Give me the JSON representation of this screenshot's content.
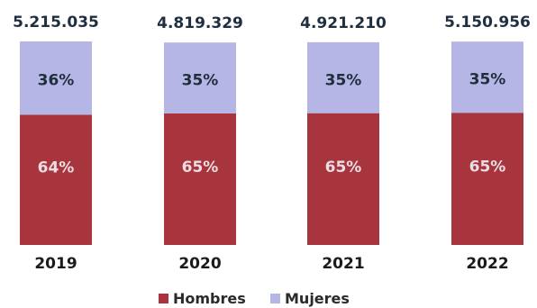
{
  "chart_data": {
    "type": "bar",
    "stacked": true,
    "categories": [
      "2019",
      "2020",
      "2021",
      "2022"
    ],
    "totals": [
      "5.215.035",
      "4.819.329",
      "4.921.210",
      "5.150.956"
    ],
    "series": [
      {
        "name": "Hombres",
        "values": [
          64,
          65,
          65,
          65
        ],
        "labels": [
          "64%",
          "65%",
          "65%",
          "65%"
        ],
        "color": "#a8343d"
      },
      {
        "name": "Mujeres",
        "values": [
          36,
          35,
          35,
          35
        ],
        "labels": [
          "36%",
          "35%",
          "35%",
          "35%"
        ],
        "color": "#b6b6e6"
      }
    ],
    "legend_position": "bottom",
    "grid": false
  }
}
